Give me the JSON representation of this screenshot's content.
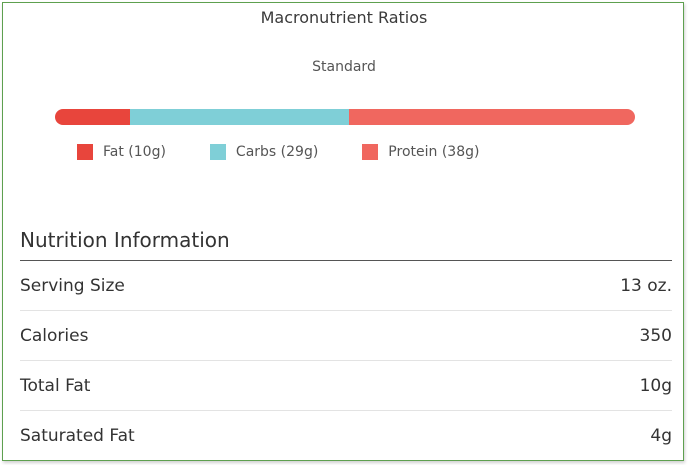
{
  "title": "Macronutrient Ratios",
  "subtitle": "Standard",
  "macros": [
    {
      "label": "Fat (10g)",
      "grams": 10,
      "color": "#e8453c"
    },
    {
      "label": "Carbs (29g)",
      "grams": 29,
      "color": "#7fcfd7"
    },
    {
      "label": "Protein (38g)",
      "grams": 38,
      "color": "#f0675f"
    }
  ],
  "nutrition": {
    "heading": "Nutrition Information",
    "rows": [
      {
        "label": "Serving Size",
        "value": "13 oz."
      },
      {
        "label": "Calories",
        "value": "350"
      },
      {
        "label": "Total Fat",
        "value": "10g"
      },
      {
        "label": "Saturated Fat",
        "value": "4g"
      }
    ]
  }
}
